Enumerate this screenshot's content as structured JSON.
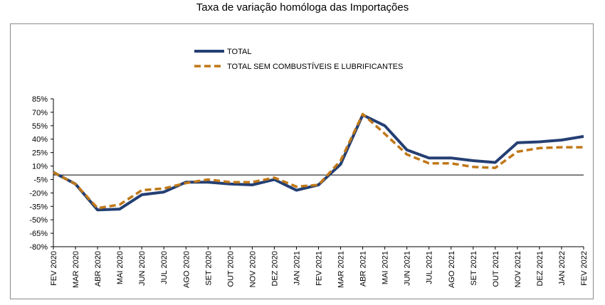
{
  "chart_data": {
    "type": "line",
    "title": "Taxa de variação homóloga das Importações",
    "xlabel": "",
    "ylabel": "",
    "categories": [
      "FEV 2020",
      "MAR 2020",
      "ABR 2020",
      "MAI 2020",
      "JUN 2020",
      "JUL 2020",
      "AGO 2020",
      "SET 2020",
      "OUT 2020",
      "NOV 2020",
      "DEZ 2020",
      "JAN 2021",
      "FEV 2021",
      "MAR 2021",
      "ABR 2021",
      "MAI 2021",
      "JUN 2021",
      "JUL 2021",
      "AGO 2021",
      "SET 2021",
      "OUT 2021",
      "NOV 2021",
      "DEZ 2021",
      "JAN 2022",
      "FEV 2022"
    ],
    "ylim": [
      -80,
      85
    ],
    "yticks": [
      "85%",
      "70%",
      "55%",
      "40%",
      "25%",
      "10%",
      "-5%",
      "-20%",
      "-35%",
      "-50%",
      "-65%",
      "-80%"
    ],
    "ytick_values": [
      85,
      70,
      55,
      40,
      25,
      10,
      -5,
      -20,
      -35,
      -50,
      -65,
      -80
    ],
    "grid": false,
    "legend_position": "top-left",
    "series": [
      {
        "name": "TOTAL",
        "color": "#243f73",
        "style": "solid",
        "values": [
          3,
          -10,
          -39,
          -38,
          -22,
          -19,
          -8,
          -8,
          -10,
          -11,
          -5,
          -17,
          -11,
          12,
          67,
          55,
          28,
          19,
          19,
          16,
          14,
          36,
          37,
          39,
          43
        ]
      },
      {
        "name": "TOTAL SEM COMBUSTÍVEIS E LUBRIFICANTES",
        "color": "#c07818",
        "style": "dashed",
        "values": [
          3,
          -10,
          -37,
          -33,
          -17,
          -15,
          -9,
          -5,
          -8,
          -8,
          -3,
          -13,
          -11,
          16,
          68,
          46,
          23,
          13,
          13,
          9,
          8,
          26,
          30,
          31,
          31
        ]
      }
    ],
    "zero_line": true
  }
}
